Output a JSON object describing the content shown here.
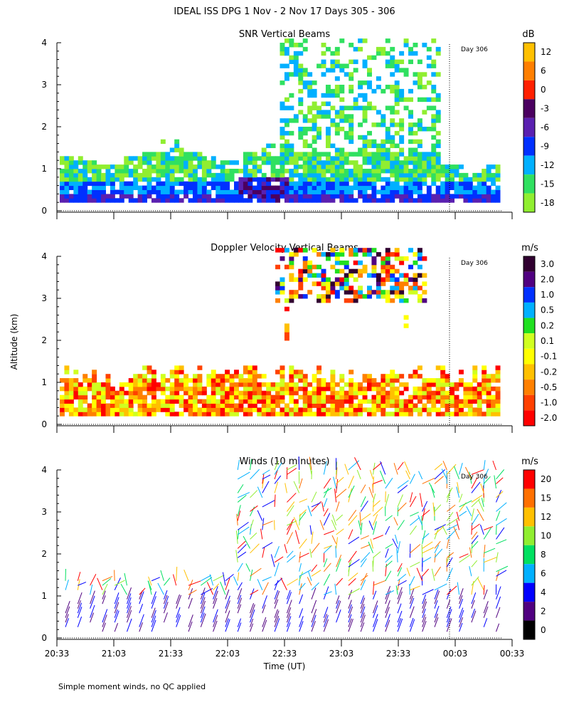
{
  "title": "IDEAL ISS DPG   1 Nov -  2 Nov 17 Days 305 - 306",
  "footnote": "Simple moment winds, no QC applied",
  "ylabel": "Altitude (km)",
  "xlabel": "Time (UT)",
  "x_ticks": [
    "20:33",
    "21:03",
    "21:33",
    "22:03",
    "22:33",
    "23:03",
    "23:33",
    "00:03",
    "00:33"
  ],
  "y_ticks": [
    "0",
    "1",
    "2",
    "3",
    "4"
  ],
  "day_marker": "Day 306",
  "chart_data": [
    {
      "type": "heatmap",
      "title": "SNR Vertical Beams",
      "unit": "dB",
      "ylim": [
        0,
        4
      ],
      "colorbar": {
        "labels": [
          "12",
          "6",
          "0",
          "-3",
          "-6",
          "-9",
          "-12",
          "-15",
          "-18"
        ],
        "colors": [
          "#ffc000",
          "#ff7f00",
          "#ff2000",
          "#4b0060",
          "#5a20b0",
          "#0030ff",
          "#00b0ff",
          "#30e060",
          "#90ee30"
        ]
      },
      "echo_top_km": [
        1.2,
        1.1,
        1.0,
        1.2,
        1.4,
        1.6,
        1.4,
        1.2,
        1.1,
        1.3,
        1.5,
        4.0,
        4.0,
        4.0,
        4.0,
        4.0,
        4.0,
        4.0,
        4.0,
        1.0,
        0.9,
        1.0
      ]
    },
    {
      "type": "heatmap",
      "title": "Doppler Velocity Vertical Beams",
      "unit": "m/s",
      "ylim": [
        0,
        4
      ],
      "colorbar": {
        "labels": [
          "3.0",
          "2.0",
          "1.0",
          "0.5",
          "0.2",
          "0.1",
          "-0.1",
          "-0.2",
          "-0.5",
          "-1.0",
          "-2.0"
        ],
        "colors": [
          "#300030",
          "#500080",
          "#0030ff",
          "#00b0ff",
          "#20e020",
          "#d0ff20",
          "#ffff00",
          "#ffc000",
          "#ff8000",
          "#ff4000",
          "#ff0000"
        ]
      }
    },
    {
      "type": "barbs",
      "title": "Winds (10 minutes)",
      "unit": "m/s",
      "ylim": [
        0,
        4
      ],
      "colorbar": {
        "labels": [
          "20",
          "15",
          "12",
          "10",
          "8",
          "6",
          "4",
          "2",
          "0"
        ],
        "colors": [
          "#ff0000",
          "#ff7000",
          "#ffc000",
          "#90ee30",
          "#00e060",
          "#00b0ff",
          "#0000ff",
          "#500080",
          "#000000"
        ]
      }
    }
  ]
}
